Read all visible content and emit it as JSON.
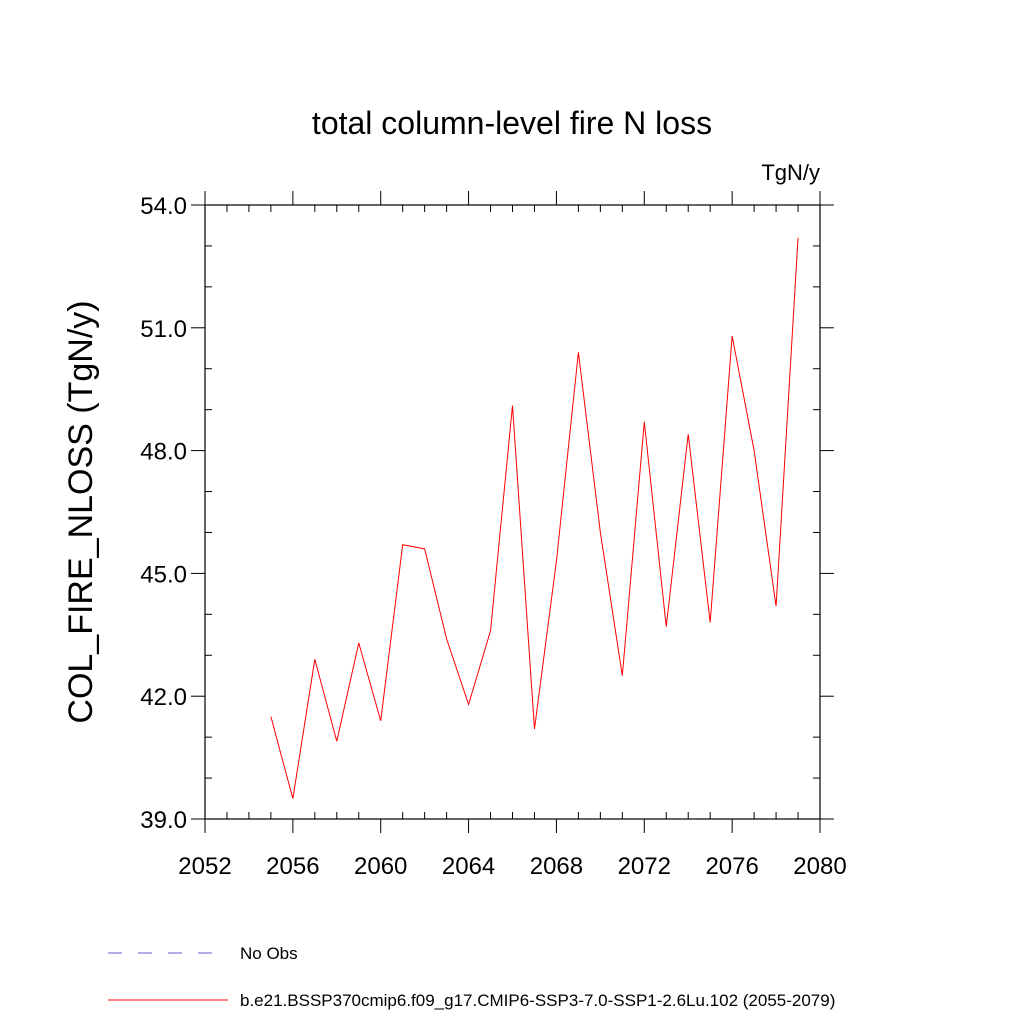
{
  "chart_data": {
    "type": "line",
    "title": "total column-level fire N loss",
    "units_label": "TgN/y",
    "xlabel": "",
    "ylabel": "COL_FIRE_NLOSS  (TgN/y)",
    "xlim": [
      2052,
      2080
    ],
    "ylim": [
      39.0,
      54.0
    ],
    "x_ticks": [
      "2052",
      "2056",
      "2060",
      "2064",
      "2068",
      "2072",
      "2076",
      "2080"
    ],
    "y_ticks": [
      "39.0",
      "42.0",
      "45.0",
      "48.0",
      "51.0",
      "54.0"
    ],
    "x_tick_values": [
      2052,
      2056,
      2060,
      2064,
      2068,
      2072,
      2076,
      2080
    ],
    "y_tick_values": [
      39.0,
      42.0,
      45.0,
      48.0,
      51.0,
      54.0
    ],
    "grid": false,
    "legend_position": "bottom",
    "series": [
      {
        "name": "b.e21.BSSP370cmip6.f09_g17.CMIP6-SSP3-7.0-SSP1-2.6Lu.102 (2055-2079)",
        "color": "#ff0000",
        "style": "solid",
        "x": [
          2055,
          2056,
          2057,
          2058,
          2059,
          2060,
          2061,
          2062,
          2063,
          2064,
          2065,
          2066,
          2067,
          2068,
          2069,
          2070,
          2071,
          2072,
          2073,
          2074,
          2075,
          2076,
          2077,
          2078,
          2079
        ],
        "y": [
          41.5,
          39.5,
          42.9,
          40.9,
          43.3,
          41.4,
          45.7,
          45.6,
          43.4,
          41.8,
          43.6,
          49.1,
          41.2,
          45.3,
          50.4,
          46.0,
          42.5,
          48.7,
          43.7,
          48.4,
          43.8,
          50.8,
          48.0,
          44.2,
          53.2
        ]
      },
      {
        "name": "No Obs",
        "color": "#6a5acd",
        "style": "dashed",
        "x": [],
        "y": []
      }
    ]
  }
}
